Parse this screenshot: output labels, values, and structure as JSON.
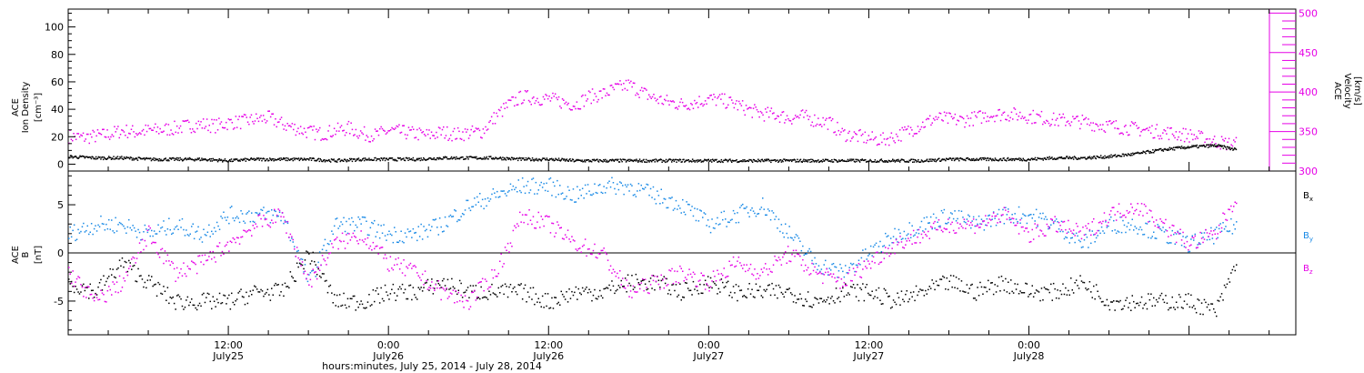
{
  "chart_data": [
    {
      "type": "scatter",
      "panel": "top",
      "ylabel_lines": [
        "ACE",
        "Ion Density",
        "[cm⁻³]"
      ],
      "ylabel_right_lines": [
        "ACE",
        "Velocity",
        "[km/s]"
      ],
      "ylim": [
        -5,
        113
      ],
      "yticks": [
        0,
        20,
        40,
        60,
        80,
        100
      ],
      "ylim_right": [
        300,
        505
      ],
      "yticks_right": [
        300,
        350,
        400,
        450,
        500
      ],
      "x_unit": "hours since 2014-07-25 00:00 UT",
      "xlim": [
        0,
        92
      ],
      "grid": false,
      "colors": {
        "density": "#000000",
        "velocity": "#e600e6"
      },
      "series": [
        {
          "key": "density",
          "x": [
            0,
            2,
            4,
            6,
            8,
            10,
            12,
            14,
            16,
            18,
            20,
            22,
            24,
            26,
            28,
            30,
            32,
            34,
            36,
            38,
            40,
            42,
            44,
            46,
            48,
            50,
            52,
            54,
            56,
            58,
            60,
            62,
            64,
            66,
            68,
            70,
            72,
            74,
            76,
            78,
            80,
            82,
            84,
            86,
            87.5
          ],
          "y": [
            6,
            5,
            5,
            4,
            4,
            4,
            3,
            4,
            4,
            4,
            3,
            4,
            4,
            4,
            5,
            5,
            5,
            4,
            4,
            3,
            3,
            3,
            3,
            3,
            3,
            3,
            3,
            3,
            3,
            3,
            3,
            3,
            3,
            4,
            4,
            4,
            4,
            5,
            5,
            6,
            8,
            11,
            13,
            14,
            11
          ]
        },
        {
          "key": "velocity",
          "x": [
            0,
            1,
            2,
            3,
            4,
            5,
            6,
            7,
            8,
            9,
            10,
            11,
            12,
            13,
            14,
            15,
            16,
            17,
            18,
            19,
            20,
            21,
            22,
            23,
            24,
            25,
            26,
            27,
            28,
            29,
            30,
            31,
            32,
            33,
            34,
            35,
            36,
            37,
            38,
            39,
            40,
            41,
            42,
            43,
            44,
            45,
            46,
            47,
            48,
            49,
            50,
            51,
            52,
            53,
            54,
            55,
            56,
            57,
            58,
            59,
            60,
            61,
            62,
            63,
            64,
            65,
            66,
            67,
            68,
            69,
            70,
            71,
            72,
            73,
            74,
            75,
            76,
            77,
            78,
            79,
            80,
            81,
            82,
            83,
            84,
            85,
            86,
            87,
            87.5
          ],
          "y": [
            345,
            343,
            345,
            347,
            352,
            350,
            352,
            353,
            355,
            358,
            360,
            358,
            362,
            363,
            366,
            368,
            360,
            355,
            350,
            348,
            352,
            355,
            348,
            346,
            352,
            350,
            348,
            346,
            350,
            347,
            349,
            351,
            370,
            385,
            395,
            393,
            392,
            388,
            385,
            395,
            398,
            405,
            410,
            400,
            392,
            388,
            385,
            388,
            392,
            390,
            385,
            378,
            373,
            372,
            368,
            370,
            365,
            362,
            348,
            345,
            342,
            340,
            345,
            352,
            360,
            368,
            366,
            365,
            368,
            372,
            373,
            372,
            370,
            368,
            365,
            365,
            363,
            360,
            358,
            356,
            354,
            352,
            350,
            348,
            346,
            342,
            338,
            335,
            335
          ]
        }
      ]
    },
    {
      "type": "scatter",
      "panel": "bottom",
      "ylabel_lines": [
        "ACE",
        "B",
        "[nT]"
      ],
      "ylim": [
        -8.5,
        8.5
      ],
      "yticks": [
        -5,
        0,
        5
      ],
      "xlim": [
        0,
        92
      ],
      "grid": false,
      "legend": {
        "position": "right",
        "entries": [
          "Bx",
          "By",
          "Bz"
        ]
      },
      "colors": {
        "Bx": "#000000",
        "By": "#1a8ae6",
        "Bz": "#e600e6"
      },
      "series": [
        {
          "key": "Bx",
          "x": [
            0,
            2,
            4,
            6,
            8,
            10,
            12,
            14,
            16,
            18,
            20,
            22,
            24,
            26,
            28,
            30,
            32,
            34,
            36,
            38,
            40,
            42,
            44,
            46,
            48,
            50,
            52,
            54,
            56,
            58,
            60,
            62,
            64,
            66,
            68,
            70,
            72,
            74,
            76,
            78,
            80,
            82,
            84,
            86,
            87.5
          ],
          "y": [
            -3,
            -4,
            -1,
            -3,
            -5,
            -5,
            -5,
            -4,
            -4,
            0,
            -5,
            -5,
            -4,
            -4,
            -3,
            -4,
            -4,
            -4,
            -5,
            -4,
            -4,
            -3,
            -3,
            -4,
            -3,
            -4,
            -4,
            -4,
            -5,
            -4,
            -4,
            -5,
            -4,
            -3,
            -4,
            -3,
            -4,
            -4,
            -3,
            -5,
            -5,
            -5,
            -5,
            -6,
            -1
          ]
        },
        {
          "key": "By",
          "x": [
            0,
            2,
            4,
            6,
            8,
            10,
            12,
            14,
            16,
            18,
            20,
            22,
            24,
            26,
            28,
            30,
            32,
            34,
            36,
            38,
            40,
            42,
            44,
            46,
            48,
            50,
            52,
            54,
            56,
            58,
            60,
            62,
            64,
            66,
            68,
            70,
            72,
            74,
            76,
            78,
            80,
            82,
            84,
            86,
            87.5
          ],
          "y": [
            2,
            3,
            3,
            2,
            3,
            2,
            4,
            4,
            4,
            -3,
            3,
            3,
            2,
            2,
            3,
            5,
            6,
            7,
            7,
            6,
            7,
            7,
            6,
            5,
            3,
            4,
            5,
            2,
            -1,
            -2,
            0,
            2,
            3,
            4,
            3,
            4,
            4,
            3,
            1,
            3,
            3,
            2,
            1,
            2,
            3
          ]
        },
        {
          "key": "Bz",
          "x": [
            0,
            2,
            4,
            6,
            8,
            10,
            12,
            14,
            16,
            18,
            20,
            22,
            24,
            26,
            28,
            30,
            32,
            34,
            36,
            38,
            40,
            42,
            44,
            46,
            48,
            50,
            52,
            54,
            56,
            58,
            60,
            62,
            64,
            66,
            68,
            70,
            72,
            74,
            76,
            78,
            80,
            82,
            84,
            86,
            87.5
          ],
          "y": [
            -2,
            -5,
            -3,
            2,
            -2,
            -1,
            1,
            3,
            4,
            -3,
            1,
            2,
            -1,
            -2,
            -4,
            -5,
            -2,
            4,
            3,
            1,
            0,
            -4,
            -3,
            -2,
            -3,
            -1,
            -2,
            0,
            -2,
            -3,
            -1,
            1,
            2,
            3,
            3,
            4,
            2,
            3,
            2,
            4,
            5,
            3,
            1,
            2,
            6
          ]
        }
      ]
    }
  ],
  "x_axis": {
    "tick_labels": [
      {
        "time": "12:00",
        "date": "July25",
        "hour": 12
      },
      {
        "time": "0:00",
        "date": "July26",
        "hour": 24
      },
      {
        "time": "12:00",
        "date": "July26",
        "hour": 36
      },
      {
        "time": "0:00",
        "date": "July27",
        "hour": 48
      },
      {
        "time": "12:00",
        "date": "July27",
        "hour": 60
      },
      {
        "time": "0:00",
        "date": "July28",
        "hour": 72
      }
    ],
    "title": "hours:minutes, July 25, 2014 - July 28, 2014"
  },
  "legend_labels": {
    "Bx": "B",
    "Bx_sub": "x",
    "By": "B",
    "By_sub": "y",
    "Bz": "B",
    "Bz_sub": "z"
  }
}
